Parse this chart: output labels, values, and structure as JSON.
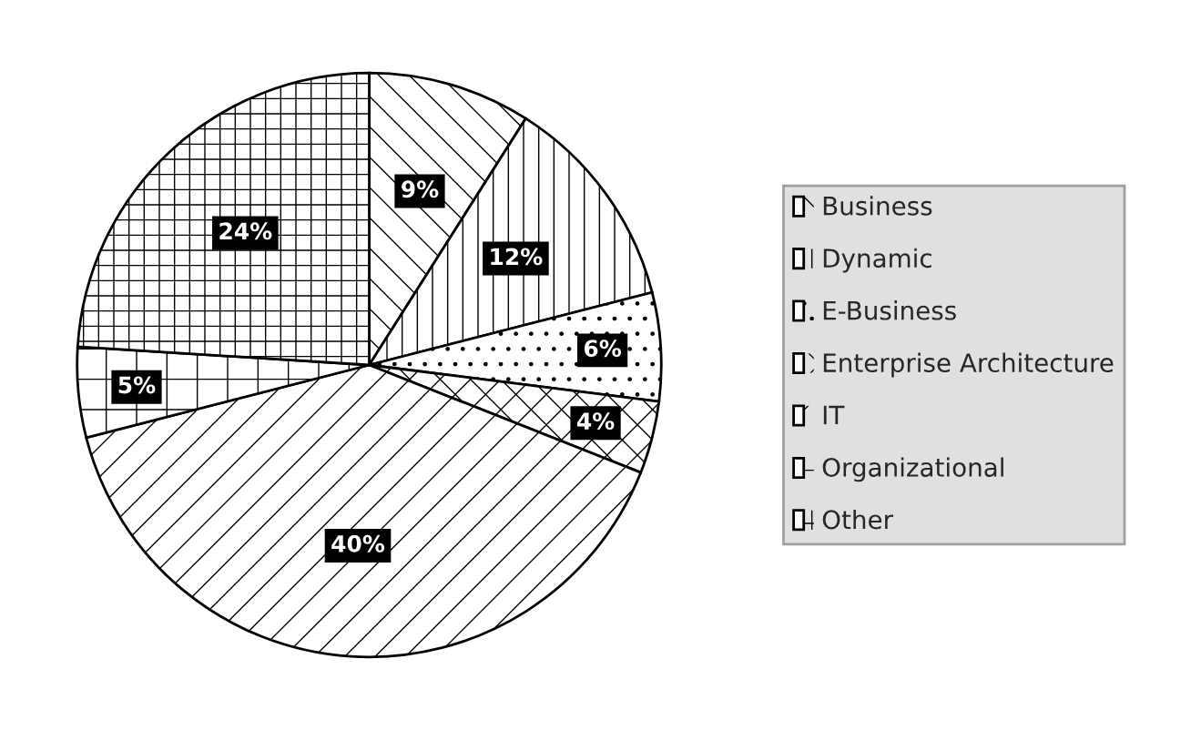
{
  "chart_data": {
    "type": "pie",
    "categories": [
      "Business",
      "Dynamic",
      "E-Business",
      "Enterprise Architecture",
      "IT",
      "Organizational",
      "Other"
    ],
    "values": [
      9,
      12,
      6,
      4,
      40,
      5,
      24
    ],
    "value_labels": [
      "9%",
      "12%",
      "6%",
      "4%",
      "40%",
      "5%",
      "24%"
    ],
    "colors": [
      "#ffffff",
      "#ffffff",
      "#ffffff",
      "#ffffff",
      "#ffffff",
      "#ffffff",
      "#ffffff"
    ],
    "legend": "right"
  }
}
